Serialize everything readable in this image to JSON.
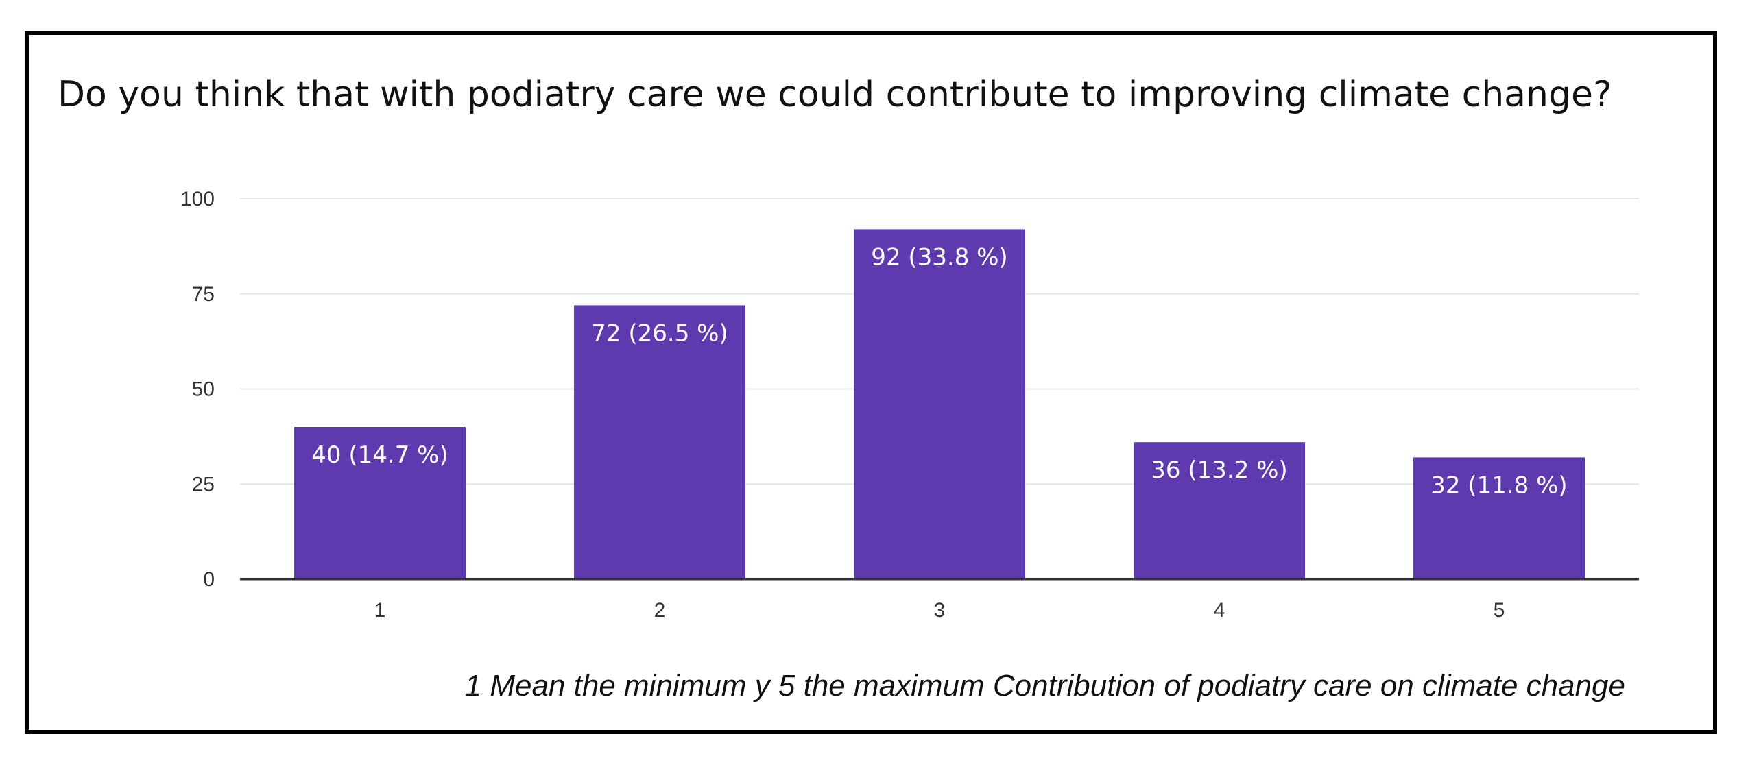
{
  "chart_data": {
    "type": "bar",
    "title": "Do you think that with podiatry care we could contribute to improving climate change?",
    "categories": [
      "1",
      "2",
      "3",
      "4",
      "5"
    ],
    "values": [
      40,
      72,
      92,
      36,
      32
    ],
    "data_labels": [
      "40 (14.7 %)",
      "72 (26.5 %)",
      "92 (33.8 %)",
      "36 (13.2 %)",
      "32 (11.8 %)"
    ],
    "xlabel": "1  Mean the minimum y 5 the maximum Contribution of podiatry care on climate change",
    "ylabel": "",
    "ylim": [
      0,
      100
    ],
    "yticks": [
      0,
      25,
      50,
      75,
      100
    ],
    "grid": true,
    "legend": "none"
  },
  "colors": {
    "bar": "#5e3aae",
    "grid": "#e6e6e6",
    "axis": "#333333"
  }
}
